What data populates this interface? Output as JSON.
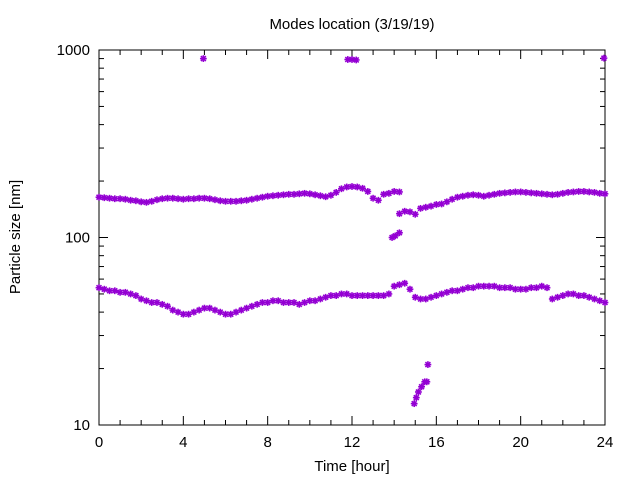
{
  "chart_data": {
    "type": "scatter",
    "title": "Modes location (3/19/19)",
    "xlabel": "Time [hour]",
    "ylabel": "Particle size [nm]",
    "xlim": [
      0,
      24
    ],
    "ylim": [
      10,
      1000
    ],
    "yscale": "log",
    "xticks": [
      0,
      4,
      8,
      12,
      16,
      20,
      24
    ],
    "xtick_labels": [
      "0",
      "4",
      "8",
      "12",
      "16",
      "20",
      "24"
    ],
    "yticks": [
      10,
      100,
      1000
    ],
    "ytick_labels": [
      "10",
      "100",
      "1000"
    ],
    "grid": false,
    "legend": "none",
    "marker_color": "#9400d3",
    "series": [
      {
        "points": [
          [
            0.0,
            164
          ],
          [
            0.25,
            163
          ],
          [
            0.5,
            162
          ],
          [
            0.75,
            161
          ],
          [
            1.0,
            161
          ],
          [
            1.25,
            160
          ],
          [
            1.5,
            158
          ],
          [
            1.75,
            157
          ],
          [
            2.0,
            155
          ],
          [
            2.25,
            154
          ],
          [
            2.5,
            156
          ],
          [
            2.75,
            159
          ],
          [
            3.0,
            161
          ],
          [
            3.25,
            162
          ],
          [
            3.5,
            162
          ],
          [
            3.75,
            161
          ],
          [
            4.0,
            160
          ],
          [
            4.25,
            161
          ],
          [
            4.5,
            161
          ],
          [
            4.75,
            162
          ],
          [
            5.0,
            162
          ],
          [
            5.25,
            161
          ],
          [
            5.5,
            159
          ],
          [
            5.75,
            157
          ],
          [
            6.0,
            156
          ],
          [
            6.25,
            156
          ],
          [
            6.5,
            156
          ],
          [
            6.75,
            157
          ],
          [
            7.0,
            158
          ],
          [
            7.25,
            160
          ],
          [
            7.5,
            162
          ],
          [
            7.75,
            164
          ],
          [
            8.0,
            166
          ],
          [
            8.25,
            167
          ],
          [
            8.5,
            168
          ],
          [
            8.75,
            169
          ],
          [
            9.0,
            170
          ],
          [
            9.25,
            170
          ],
          [
            9.5,
            171
          ],
          [
            9.75,
            172
          ],
          [
            10.0,
            171
          ],
          [
            10.25,
            169
          ],
          [
            10.5,
            167
          ],
          [
            10.75,
            165
          ],
          [
            11.0,
            168
          ],
          [
            11.25,
            174
          ],
          [
            11.5,
            182
          ],
          [
            11.75,
            186
          ],
          [
            12.0,
            187
          ],
          [
            12.25,
            186
          ],
          [
            12.5,
            183
          ],
          [
            12.75,
            176
          ],
          [
            13.0,
            162
          ],
          [
            13.25,
            158
          ],
          [
            13.5,
            170
          ],
          [
            13.75,
            172
          ],
          [
            14.0,
            176
          ],
          [
            14.25,
            175
          ],
          [
            14.25,
            134
          ],
          [
            14.5,
            138
          ],
          [
            14.75,
            137
          ],
          [
            15.0,
            133
          ],
          [
            15.25,
            143
          ],
          [
            15.5,
            145
          ],
          [
            15.75,
            147
          ],
          [
            16.0,
            150
          ],
          [
            16.25,
            151
          ],
          [
            16.5,
            155
          ],
          [
            16.75,
            160
          ],
          [
            17.0,
            164
          ],
          [
            17.25,
            166
          ],
          [
            17.5,
            168
          ],
          [
            17.75,
            169
          ],
          [
            18.0,
            168
          ],
          [
            18.25,
            166
          ],
          [
            18.5,
            168
          ],
          [
            18.75,
            170
          ],
          [
            19.0,
            172
          ],
          [
            19.25,
            173
          ],
          [
            19.5,
            174
          ],
          [
            19.75,
            175
          ],
          [
            20.0,
            175
          ],
          [
            20.25,
            174
          ],
          [
            20.5,
            173
          ],
          [
            20.75,
            172
          ],
          [
            21.0,
            171
          ],
          [
            21.25,
            170
          ],
          [
            21.5,
            169
          ],
          [
            21.75,
            170
          ],
          [
            22.0,
            172
          ],
          [
            22.25,
            174
          ],
          [
            22.5,
            175
          ],
          [
            22.75,
            176
          ],
          [
            23.0,
            176
          ],
          [
            23.25,
            175
          ],
          [
            23.5,
            174
          ],
          [
            23.75,
            172
          ],
          [
            24.0,
            171
          ]
        ]
      },
      {
        "points": [
          [
            0.0,
            54
          ],
          [
            0.25,
            53
          ],
          [
            0.5,
            52
          ],
          [
            0.75,
            52
          ],
          [
            1.0,
            51
          ],
          [
            1.25,
            51
          ],
          [
            1.5,
            50
          ],
          [
            1.75,
            49
          ],
          [
            2.0,
            47
          ],
          [
            2.25,
            46
          ],
          [
            2.5,
            45
          ],
          [
            2.75,
            45
          ],
          [
            3.0,
            44
          ],
          [
            3.25,
            43
          ],
          [
            3.5,
            41
          ],
          [
            3.75,
            40
          ],
          [
            4.0,
            39
          ],
          [
            4.25,
            39
          ],
          [
            4.5,
            40
          ],
          [
            4.75,
            41
          ],
          [
            5.0,
            42
          ],
          [
            5.25,
            42
          ],
          [
            5.5,
            41
          ],
          [
            5.75,
            40
          ],
          [
            6.0,
            39
          ],
          [
            6.25,
            39
          ],
          [
            6.5,
            40
          ],
          [
            6.75,
            41
          ],
          [
            7.0,
            42
          ],
          [
            7.25,
            43
          ],
          [
            7.5,
            44
          ],
          [
            7.75,
            45
          ],
          [
            8.0,
            45
          ],
          [
            8.25,
            46
          ],
          [
            8.5,
            46
          ],
          [
            8.75,
            45
          ],
          [
            9.0,
            45
          ],
          [
            9.25,
            45
          ],
          [
            9.5,
            44
          ],
          [
            9.75,
            45
          ],
          [
            10.0,
            46
          ],
          [
            10.25,
            46
          ],
          [
            10.5,
            47
          ],
          [
            10.75,
            48
          ],
          [
            11.0,
            49
          ],
          [
            11.25,
            49
          ],
          [
            11.5,
            50
          ],
          [
            11.75,
            50
          ],
          [
            12.0,
            49
          ],
          [
            12.25,
            49
          ],
          [
            12.5,
            49
          ],
          [
            12.75,
            49
          ],
          [
            13.0,
            49
          ],
          [
            13.25,
            49
          ],
          [
            13.5,
            49
          ],
          [
            13.75,
            50
          ],
          [
            14.0,
            55
          ],
          [
            14.25,
            56
          ],
          [
            14.5,
            57
          ],
          [
            14.75,
            53
          ],
          [
            15.0,
            48
          ],
          [
            15.25,
            47
          ],
          [
            15.5,
            47
          ],
          [
            15.75,
            48
          ],
          [
            16.0,
            49
          ],
          [
            16.25,
            50
          ],
          [
            16.5,
            51
          ],
          [
            16.75,
            52
          ],
          [
            17.0,
            52
          ],
          [
            17.25,
            53
          ],
          [
            17.5,
            54
          ],
          [
            17.75,
            54
          ],
          [
            18.0,
            55
          ],
          [
            18.25,
            55
          ],
          [
            18.5,
            55
          ],
          [
            18.75,
            55
          ],
          [
            19.0,
            54
          ],
          [
            19.25,
            54
          ],
          [
            19.5,
            54
          ],
          [
            19.75,
            53
          ],
          [
            20.0,
            53
          ],
          [
            20.25,
            53
          ],
          [
            20.5,
            54
          ],
          [
            20.75,
            54
          ],
          [
            21.0,
            55
          ],
          [
            21.25,
            54
          ],
          [
            21.5,
            47
          ],
          [
            21.75,
            48
          ],
          [
            22.0,
            49
          ],
          [
            22.25,
            50
          ],
          [
            22.5,
            50
          ],
          [
            22.75,
            49
          ],
          [
            23.0,
            49
          ],
          [
            23.25,
            48
          ],
          [
            23.5,
            47
          ],
          [
            23.75,
            46
          ],
          [
            24.0,
            45
          ]
        ]
      },
      {
        "points": [
          [
            4.95,
            900
          ],
          [
            11.8,
            890
          ],
          [
            12.0,
            890
          ],
          [
            12.2,
            885
          ],
          [
            23.95,
            905
          ],
          [
            13.9,
            100
          ],
          [
            14.05,
            102
          ],
          [
            14.25,
            106
          ],
          [
            14.95,
            13
          ],
          [
            15.05,
            14
          ],
          [
            15.15,
            15
          ],
          [
            15.3,
            16
          ],
          [
            15.45,
            17
          ],
          [
            15.55,
            17
          ],
          [
            15.6,
            21
          ]
        ]
      }
    ]
  }
}
